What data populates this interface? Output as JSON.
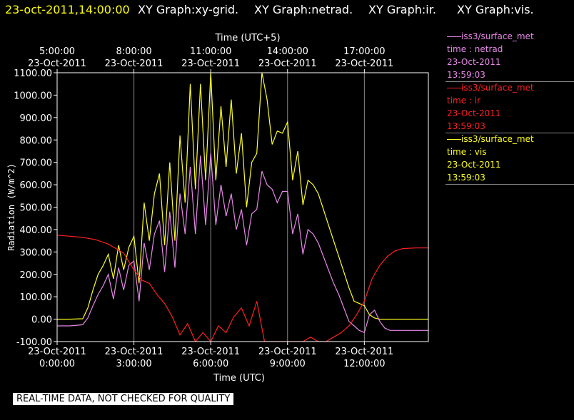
{
  "header": {
    "timestamp": "23-oct-2011,14:00:00",
    "graph_titles": [
      "XY Graph:xy-grid.",
      "XY Graph:netrad.",
      "XY Graph:ir.",
      "XY Graph:vis."
    ]
  },
  "legend": [
    {
      "source": "iss3/surface_met",
      "variable": "time : netrad",
      "date": "23-Oct-2011",
      "time": "13:59:03",
      "color": "#e888e8"
    },
    {
      "source": "iss3/surface_met",
      "variable": "time : ir",
      "date": "23-Oct-2011",
      "time": "13:59:03",
      "color": "#ff2020"
    },
    {
      "source": "iss3/surface_met",
      "variable": "time : vis",
      "date": "23-Oct-2011",
      "time": "13:59:03",
      "color": "#ffff20"
    }
  ],
  "footer": "REAL-TIME DATA, NOT CHECKED FOR QUALITY",
  "colors": {
    "background": "#000000",
    "axes": "#ffffff",
    "grid": "#888888",
    "header_timestamp": "#ffff00"
  },
  "chart_data": {
    "type": "line",
    "xlabel": "Time (UTC)",
    "xlabel_top": "Time (UTC+5)",
    "ylabel": "Radiation (W/m^2)",
    "xlim": [
      0,
      14.5
    ],
    "ylim": [
      -100,
      1100
    ],
    "x_unit": "hours UTC on 23-Oct-2011",
    "grid": true,
    "yticks": [
      "-100.00",
      "0.00",
      "100.00",
      "200.00",
      "300.00",
      "400.00",
      "500.00",
      "600.00",
      "700.00",
      "800.00",
      "900.00",
      "1000.00",
      "1100.00"
    ],
    "xticks_bottom": [
      {
        "x": 0,
        "date": "23-Oct-2011",
        "time": "0:00:00"
      },
      {
        "x": 3,
        "date": "23-Oct-2011",
        "time": "3:00:00"
      },
      {
        "x": 6,
        "date": "23-Oct-2011",
        "time": "6:00:00"
      },
      {
        "x": 9,
        "date": "23-Oct-2011",
        "time": "9:00:00"
      },
      {
        "x": 12,
        "date": "23-Oct-2011",
        "time": "12:00:00"
      }
    ],
    "xticks_top": [
      {
        "x": 0,
        "time": "5:00:00",
        "date": "23-Oct-2011"
      },
      {
        "x": 3,
        "time": "8:00:00",
        "date": "23-Oct-2011"
      },
      {
        "x": 6,
        "time": "11:00:00",
        "date": "23-Oct-2011"
      },
      {
        "x": 9,
        "time": "14:00:00",
        "date": "23-Oct-2011"
      },
      {
        "x": 12,
        "time": "17:00:00",
        "date": "23-Oct-2011"
      }
    ],
    "series": [
      {
        "name": "time : vis",
        "color": "#ffff20",
        "x": [
          0,
          0.5,
          1.0,
          1.2,
          1.4,
          1.6,
          1.8,
          2.0,
          2.2,
          2.4,
          2.6,
          2.8,
          3.0,
          3.2,
          3.4,
          3.6,
          3.8,
          4.0,
          4.2,
          4.4,
          4.6,
          4.8,
          5.0,
          5.2,
          5.4,
          5.6,
          5.8,
          6.0,
          6.2,
          6.4,
          6.6,
          6.8,
          7.0,
          7.2,
          7.4,
          7.6,
          7.8,
          8.0,
          8.2,
          8.4,
          8.6,
          8.8,
          9.0,
          9.2,
          9.4,
          9.6,
          9.8,
          10.0,
          10.2,
          10.4,
          10.6,
          10.8,
          11.0,
          11.2,
          11.4,
          11.6,
          11.8,
          12.0,
          12.2,
          12.4,
          12.6,
          12.8,
          13.0,
          13.5,
          14.0,
          14.5
        ],
        "y": [
          0,
          0,
          2,
          50,
          130,
          200,
          240,
          290,
          180,
          330,
          220,
          320,
          370,
          160,
          520,
          350,
          560,
          650,
          330,
          700,
          350,
          820,
          520,
          1050,
          580,
          1050,
          620,
          1100,
          620,
          950,
          680,
          980,
          650,
          830,
          500,
          700,
          740,
          1100,
          980,
          780,
          840,
          830,
          880,
          620,
          750,
          510,
          620,
          600,
          560,
          490,
          420,
          350,
          280,
          210,
          140,
          80,
          70,
          60,
          20,
          5,
          0,
          0,
          0,
          0,
          0,
          0
        ]
      },
      {
        "name": "time : netrad",
        "color": "#e888e8",
        "x": [
          0,
          0.5,
          1.0,
          1.2,
          1.4,
          1.6,
          1.8,
          2.0,
          2.2,
          2.4,
          2.6,
          2.8,
          3.0,
          3.2,
          3.4,
          3.6,
          3.8,
          4.0,
          4.2,
          4.4,
          4.6,
          4.8,
          5.0,
          5.2,
          5.4,
          5.6,
          5.8,
          6.0,
          6.2,
          6.4,
          6.6,
          6.8,
          7.0,
          7.2,
          7.4,
          7.6,
          7.8,
          8.0,
          8.2,
          8.4,
          8.6,
          8.8,
          9.0,
          9.2,
          9.4,
          9.6,
          9.8,
          10.0,
          10.2,
          10.4,
          10.6,
          10.8,
          11.0,
          11.2,
          11.4,
          11.6,
          11.8,
          12.0,
          12.2,
          12.4,
          12.6,
          12.8,
          13.0,
          13.5,
          14.0,
          14.5
        ],
        "y": [
          -30,
          -30,
          -25,
          5,
          60,
          110,
          150,
          200,
          90,
          230,
          130,
          240,
          260,
          80,
          340,
          220,
          380,
          440,
          210,
          480,
          230,
          560,
          380,
          680,
          380,
          730,
          420,
          740,
          420,
          600,
          460,
          560,
          400,
          490,
          330,
          470,
          490,
          660,
          600,
          580,
          520,
          570,
          570,
          380,
          470,
          290,
          400,
          380,
          340,
          280,
          220,
          160,
          110,
          50,
          -10,
          -30,
          -50,
          -60,
          20,
          40,
          -10,
          -40,
          -50,
          -50,
          -50,
          -50
        ]
      },
      {
        "name": "time : ir",
        "color": "#ff2020",
        "x": [
          0,
          0.5,
          1.0,
          1.5,
          2.0,
          2.3,
          2.6,
          3.0,
          3.3,
          3.6,
          3.9,
          4.2,
          4.5,
          4.8,
          5.1,
          5.4,
          5.7,
          6.0,
          6.3,
          6.6,
          6.9,
          7.2,
          7.5,
          7.8,
          8.1,
          8.4,
          8.7,
          9.0,
          9.3,
          9.6,
          9.9,
          10.2,
          10.5,
          10.8,
          11.1,
          11.4,
          11.7,
          12.0,
          12.3,
          12.6,
          12.9,
          13.2,
          13.5,
          14.0,
          14.5
        ],
        "y": [
          375,
          370,
          365,
          355,
          335,
          315,
          295,
          220,
          175,
          160,
          110,
          70,
          10,
          -70,
          -20,
          -100,
          -60,
          -100,
          -30,
          -60,
          10,
          50,
          -30,
          80,
          -100,
          -100,
          -100,
          -100,
          -100,
          -100,
          -80,
          -100,
          -100,
          -80,
          -60,
          -30,
          20,
          80,
          180,
          240,
          280,
          305,
          315,
          318,
          318
        ]
      }
    ]
  }
}
